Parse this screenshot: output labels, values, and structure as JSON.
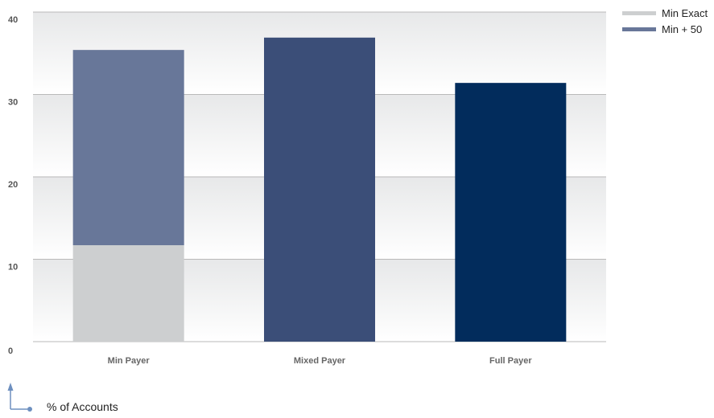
{
  "chart_data": {
    "type": "bar",
    "stacked": true,
    "categories": [
      "Min Payer",
      "Mixed Payer",
      "Full Payer"
    ],
    "y_ticks": [
      "0",
      "10",
      "20",
      "30",
      "40"
    ],
    "ylim": [
      0,
      40
    ],
    "grid": true,
    "legend_position": "top-right",
    "ylabel": "% of Accounts",
    "colors": {
      "Min Exact": "#cdcfd0",
      "Min + 50": "#687799",
      "Mixed Payer": "#3b4e78",
      "Full Payer": "#022c5c"
    },
    "legend": [
      {
        "name": "Min Exact",
        "color": "#cdcfd0"
      },
      {
        "name": "Min + 50",
        "color": "#687799"
      }
    ],
    "bars": [
      {
        "category": "Min Payer",
        "segments": [
          {
            "series": "Min Exact",
            "value": 11.7
          },
          {
            "series": "Min + 50",
            "value": 23.7
          }
        ]
      },
      {
        "category": "Mixed Payer",
        "segments": [
          {
            "series": "",
            "value": 36.9
          }
        ]
      },
      {
        "category": "Full Payer",
        "segments": [
          {
            "series": "",
            "value": 31.4
          }
        ]
      }
    ]
  }
}
